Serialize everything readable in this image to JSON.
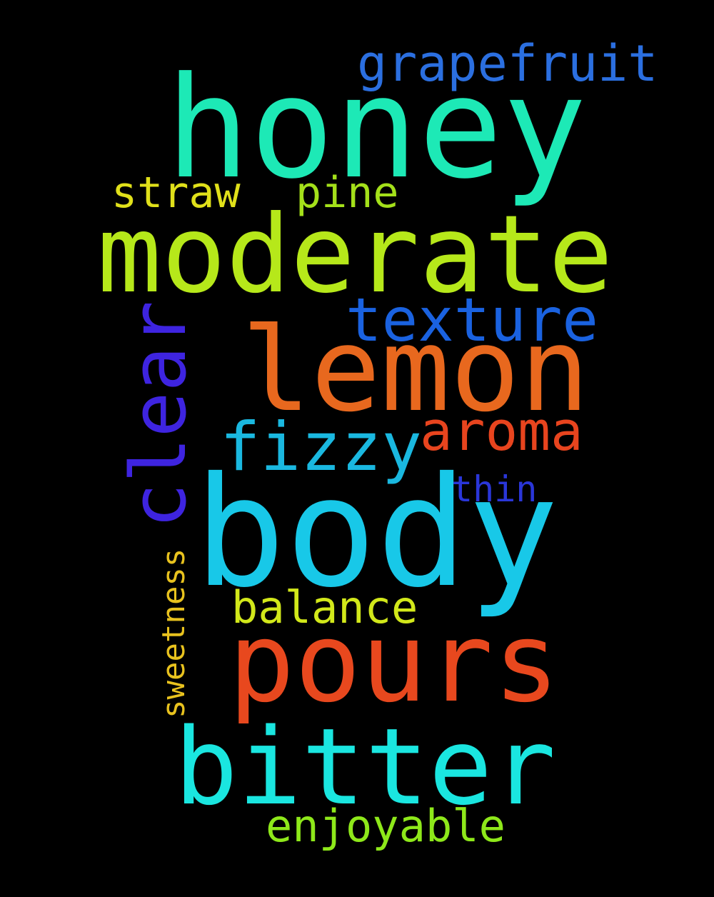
{
  "cloud": {
    "background": "#000000",
    "words": {
      "honey": {
        "text": "honey",
        "color": "#1de9b6"
      },
      "grapefruit": {
        "text": "grapefruit",
        "color": "#2b6fe0"
      },
      "straw": {
        "text": "straw",
        "color": "#e0e01a"
      },
      "pine": {
        "text": "pine",
        "color": "#a4e01a"
      },
      "moderate": {
        "text": "moderate",
        "color": "#b6e81a"
      },
      "texture": {
        "text": "texture",
        "color": "#1a62e0"
      },
      "lemon": {
        "text": "lemon",
        "color": "#e8681e"
      },
      "clear": {
        "text": "clear",
        "color": "#3e24e0"
      },
      "fizzy": {
        "text": "fizzy",
        "color": "#1ab8e0"
      },
      "aroma": {
        "text": "aroma",
        "color": "#e8441e"
      },
      "thin": {
        "text": "thin",
        "color": "#2a36d8"
      },
      "body": {
        "text": "body",
        "color": "#18c8e8"
      },
      "sweetness": {
        "text": "sweetness",
        "color": "#e8c21e"
      },
      "balance": {
        "text": "balance",
        "color": "#d2e81a"
      },
      "pours": {
        "text": "pours",
        "color": "#e8481e"
      },
      "bitter": {
        "text": "bitter",
        "color": "#1ae6e0"
      },
      "enjoyable": {
        "text": "enjoyable",
        "color": "#8ee81a"
      }
    }
  }
}
